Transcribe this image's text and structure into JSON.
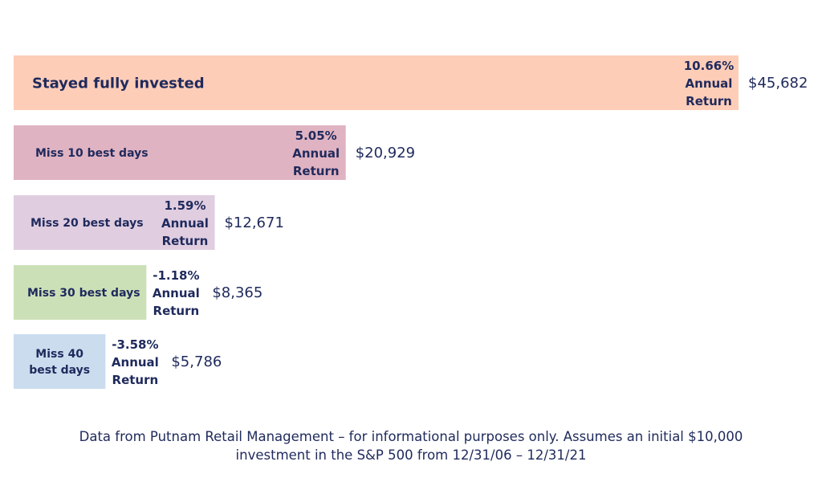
{
  "chart_data": {
    "type": "bar",
    "orientation": "horizontal",
    "categories": [
      [
        "Stayed fully invested"
      ],
      [
        "Miss 10 best days"
      ],
      [
        "Miss 20 best days"
      ],
      [
        "Miss 30 best days"
      ],
      [
        "Miss 40",
        "best days"
      ]
    ],
    "values": [
      45682,
      20929,
      12671,
      8365,
      5786
    ],
    "value_labels": [
      "$45,682",
      "$20,929",
      "$12,671",
      "$8,365",
      "$5,786"
    ],
    "annual_returns": [
      [
        "10.66%",
        "Annual",
        "Return"
      ],
      [
        "5.05%",
        "Annual",
        "Return"
      ],
      [
        "1.59%",
        "Annual",
        "Return"
      ],
      [
        "-1.18%",
        "Annual",
        "Return"
      ],
      [
        "-3.58%",
        "Annual",
        "Return"
      ]
    ],
    "colors": [
      "#fdcdb8",
      "#e0b3c2",
      "#e0cde0",
      "#cce0b8",
      "#cadcee"
    ],
    "xlim": [
      0,
      45682
    ],
    "grid": false,
    "legend": "none"
  },
  "footnote": {
    "line1": "Data from Putnam Retail Management – for informational purposes only. Assumes an initial $10,000",
    "line2": "investment in the S&P 500 from 12/31/06 – 12/31/21"
  }
}
